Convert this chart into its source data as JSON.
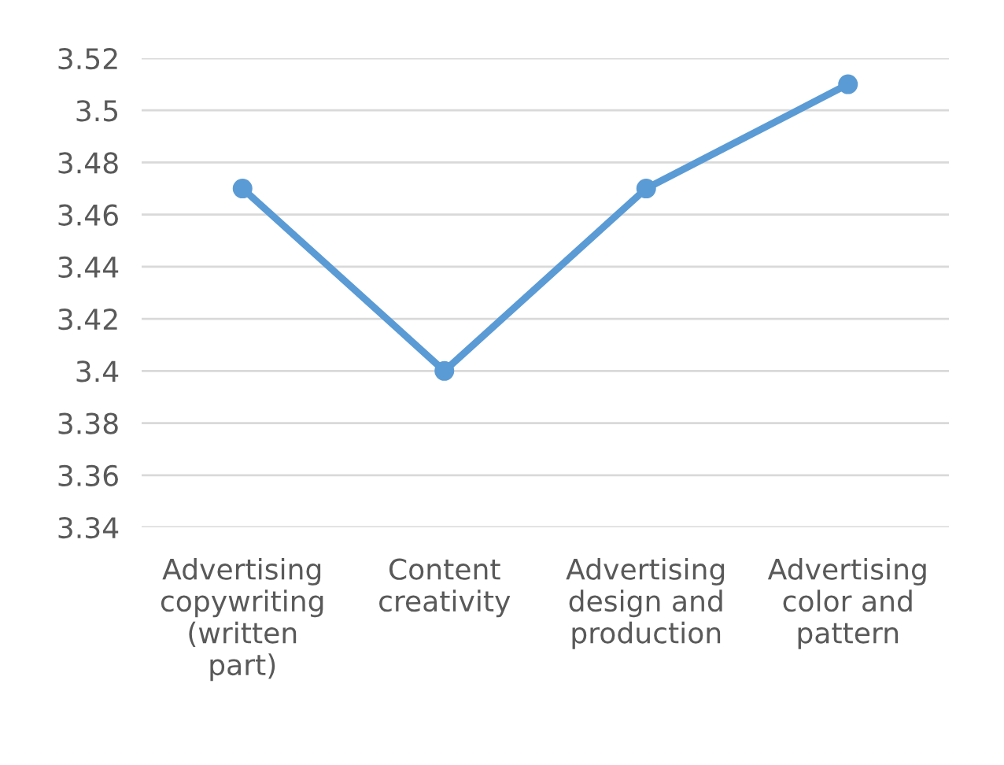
{
  "chart_data": {
    "type": "line",
    "categories": [
      "Advertising\ncopywriting\n(written\npart)",
      "Content\ncreativity",
      "Advertising\ndesign and\nproduction",
      "Advertising\ncolor and\npattern"
    ],
    "series": [
      {
        "color": "#5b9bd5",
        "values": [
          3.47,
          3.4,
          3.47,
          3.51
        ]
      }
    ],
    "ylim": [
      3.34,
      3.52
    ],
    "yticks": [
      {
        "value": 3.34,
        "label": "3.34"
      },
      {
        "value": 3.36,
        "label": "3.36"
      },
      {
        "value": 3.38,
        "label": "3.38"
      },
      {
        "value": 3.4,
        "label": "3.4"
      },
      {
        "value": 3.42,
        "label": "3.42"
      },
      {
        "value": 3.44,
        "label": "3.44"
      },
      {
        "value": 3.46,
        "label": "3.46"
      },
      {
        "value": 3.48,
        "label": "3.48"
      },
      {
        "value": 3.5,
        "label": "3.5"
      },
      {
        "value": 3.52,
        "label": "3.52"
      }
    ],
    "grid": "y",
    "marker": "circle",
    "line_style": "solid",
    "legend": false
  }
}
